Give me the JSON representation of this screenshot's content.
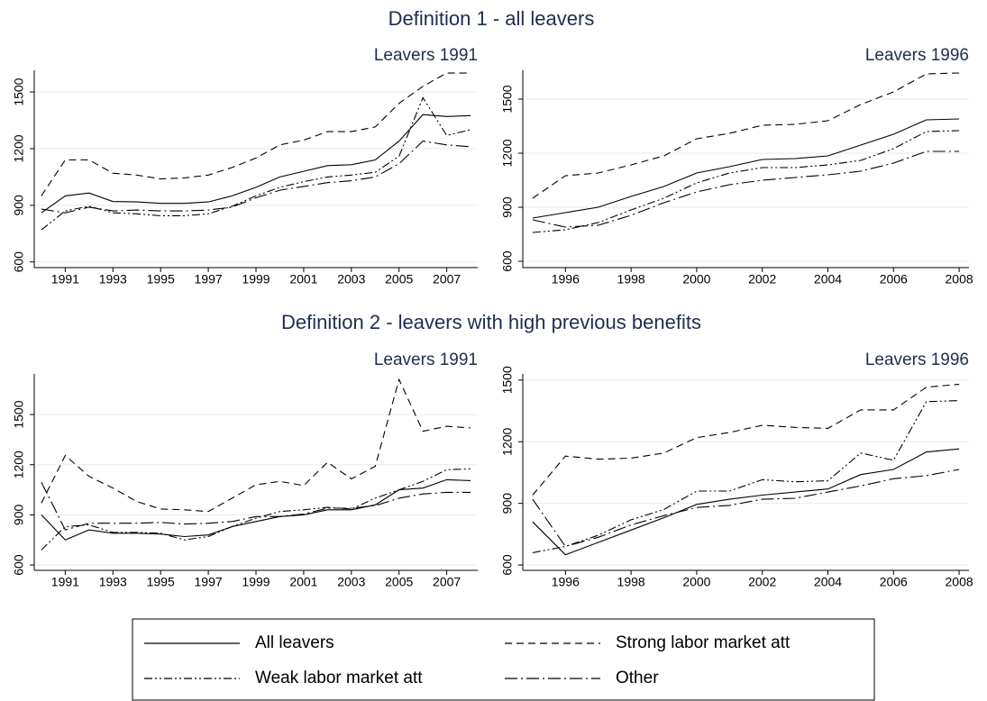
{
  "titles": [
    "Definition 1 - all leavers",
    "Definition 2 - leavers with high previous benefits"
  ],
  "chart_data": [
    {
      "type": "line",
      "subtitle": "Leavers 1991",
      "x": [
        1990,
        1991,
        1992,
        1993,
        1994,
        1995,
        1996,
        1997,
        1998,
        1999,
        2000,
        2001,
        2002,
        2003,
        2004,
        2005,
        2006,
        2007,
        2008
      ],
      "xlim": [
        1989.7,
        2008.3
      ],
      "xticks": [
        1991,
        1993,
        1995,
        1997,
        1999,
        2001,
        2003,
        2005,
        2007
      ],
      "ylim": [
        570,
        1615
      ],
      "yticks": [
        600,
        900,
        1200,
        1500
      ],
      "grid": true,
      "series": [
        {
          "name": "All leavers",
          "color": "#000000",
          "dash": "none",
          "values": [
            860,
            950,
            965,
            920,
            918,
            910,
            910,
            918,
            950,
            995,
            1050,
            1080,
            1110,
            1115,
            1140,
            1240,
            1380,
            1370,
            1375
          ]
        },
        {
          "name": "Strong labor market att",
          "color": "#000000",
          "dash": "8,5",
          "values": [
            950,
            1140,
            1140,
            1070,
            1060,
            1040,
            1045,
            1060,
            1100,
            1150,
            1220,
            1245,
            1290,
            1290,
            1315,
            1440,
            1530,
            1600,
            1600
          ]
        },
        {
          "name": "Weak labor market att",
          "color": "#000000",
          "dash": "9,3,2,3,2,3",
          "values": [
            770,
            870,
            895,
            860,
            855,
            845,
            845,
            855,
            895,
            950,
            995,
            1025,
            1050,
            1060,
            1075,
            1160,
            1470,
            1270,
            1300
          ]
        },
        {
          "name": "Other",
          "color": "#000000",
          "dash": "14,4,2,4",
          "values": [
            880,
            860,
            890,
            870,
            875,
            870,
            870,
            875,
            890,
            940,
            980,
            1000,
            1020,
            1030,
            1050,
            1120,
            1240,
            1220,
            1210
          ]
        }
      ]
    },
    {
      "type": "line",
      "subtitle": "Leavers 1996",
      "x": [
        1995,
        1996,
        1997,
        1998,
        1999,
        2000,
        2001,
        2002,
        2003,
        2004,
        2005,
        2006,
        2007,
        2008
      ],
      "xlim": [
        1994.7,
        2008.3
      ],
      "xticks": [
        1996,
        1998,
        2000,
        2002,
        2004,
        2006,
        2008
      ],
      "ylim": [
        565,
        1660
      ],
      "yticks": [
        600,
        900,
        1200,
        1500
      ],
      "grid": true,
      "series": [
        {
          "name": "All leavers",
          "color": "#000000",
          "dash": "none",
          "values": [
            840,
            870,
            900,
            960,
            1015,
            1090,
            1125,
            1165,
            1170,
            1185,
            1245,
            1305,
            1385,
            1390
          ]
        },
        {
          "name": "Strong labor market att",
          "color": "#000000",
          "dash": "8,5",
          "values": [
            950,
            1075,
            1090,
            1135,
            1185,
            1280,
            1310,
            1355,
            1360,
            1380,
            1470,
            1540,
            1640,
            1645
          ]
        },
        {
          "name": "Weak labor market att",
          "color": "#000000",
          "dash": "9,3,2,3,2,3",
          "values": [
            760,
            775,
            815,
            885,
            950,
            1035,
            1090,
            1120,
            1120,
            1135,
            1160,
            1225,
            1320,
            1325
          ]
        },
        {
          "name": "Other",
          "color": "#000000",
          "dash": "14,4,2,4",
          "values": [
            830,
            790,
            800,
            855,
            925,
            985,
            1025,
            1050,
            1065,
            1080,
            1100,
            1145,
            1210,
            1210
          ]
        }
      ]
    },
    {
      "type": "line",
      "subtitle": "Leavers 1991",
      "x": [
        1990,
        1991,
        1992,
        1993,
        1994,
        1995,
        1996,
        1997,
        1998,
        1999,
        2000,
        2001,
        2002,
        2003,
        2004,
        2005,
        2006,
        2007,
        2008
      ],
      "xlim": [
        1989.7,
        2008.3
      ],
      "xticks": [
        1991,
        1993,
        1995,
        1997,
        1999,
        2001,
        2003,
        2005,
        2007
      ],
      "ylim": [
        568,
        1743
      ],
      "yticks": [
        600,
        900,
        1200,
        1500
      ],
      "grid": true,
      "series": [
        {
          "name": "All leavers",
          "color": "#000000",
          "dash": "none",
          "values": [
            900,
            750,
            810,
            790,
            790,
            785,
            770,
            780,
            830,
            860,
            890,
            900,
            930,
            930,
            960,
            1050,
            1060,
            1110,
            1105
          ]
        },
        {
          "name": "Strong labor market att",
          "color": "#000000",
          "dash": "8,5",
          "values": [
            970,
            1255,
            1130,
            1060,
            980,
            935,
            930,
            920,
            1000,
            1080,
            1100,
            1075,
            1215,
            1115,
            1190,
            1710,
            1400,
            1430,
            1420
          ]
        },
        {
          "name": "Weak labor market att",
          "color": "#000000",
          "dash": "9,3,2,3,2,3",
          "values": [
            690,
            830,
            840,
            795,
            795,
            790,
            750,
            770,
            830,
            880,
            920,
            930,
            945,
            935,
            1000,
            1050,
            1100,
            1170,
            1175
          ]
        },
        {
          "name": "Other",
          "color": "#000000",
          "dash": "14,4,2,4",
          "values": [
            1095,
            810,
            850,
            850,
            850,
            855,
            845,
            850,
            860,
            890,
            890,
            905,
            940,
            940,
            955,
            1000,
            1025,
            1035,
            1035
          ]
        }
      ]
    },
    {
      "type": "line",
      "subtitle": "Leavers 1996",
      "x": [
        1995,
        1996,
        1997,
        1998,
        1999,
        2000,
        2001,
        2002,
        2003,
        2004,
        2005,
        2006,
        2007,
        2008
      ],
      "xlim": [
        1994.7,
        2008.3
      ],
      "xticks": [
        1996,
        1998,
        2000,
        2002,
        2004,
        2006,
        2008
      ],
      "ylim": [
        574,
        1530
      ],
      "yticks": [
        600,
        900,
        1200,
        1500
      ],
      "grid": true,
      "series": [
        {
          "name": "All leavers",
          "color": "#000000",
          "dash": "none",
          "values": [
            810,
            650,
            710,
            770,
            830,
            895,
            920,
            940,
            955,
            970,
            1040,
            1065,
            1150,
            1165
          ]
        },
        {
          "name": "Strong labor market att",
          "color": "#000000",
          "dash": "8,5",
          "values": [
            940,
            1130,
            1115,
            1120,
            1145,
            1220,
            1245,
            1280,
            1270,
            1265,
            1355,
            1355,
            1465,
            1480
          ]
        },
        {
          "name": "Weak labor market att",
          "color": "#000000",
          "dash": "9,3,2,3,2,3",
          "values": [
            660,
            690,
            745,
            820,
            870,
            960,
            960,
            1015,
            1005,
            1010,
            1145,
            1110,
            1395,
            1400
          ]
        },
        {
          "name": "Other",
          "color": "#000000",
          "dash": "14,4,2,4",
          "values": [
            920,
            690,
            735,
            795,
            840,
            880,
            890,
            920,
            925,
            955,
            985,
            1020,
            1035,
            1065
          ]
        }
      ]
    }
  ]
}
